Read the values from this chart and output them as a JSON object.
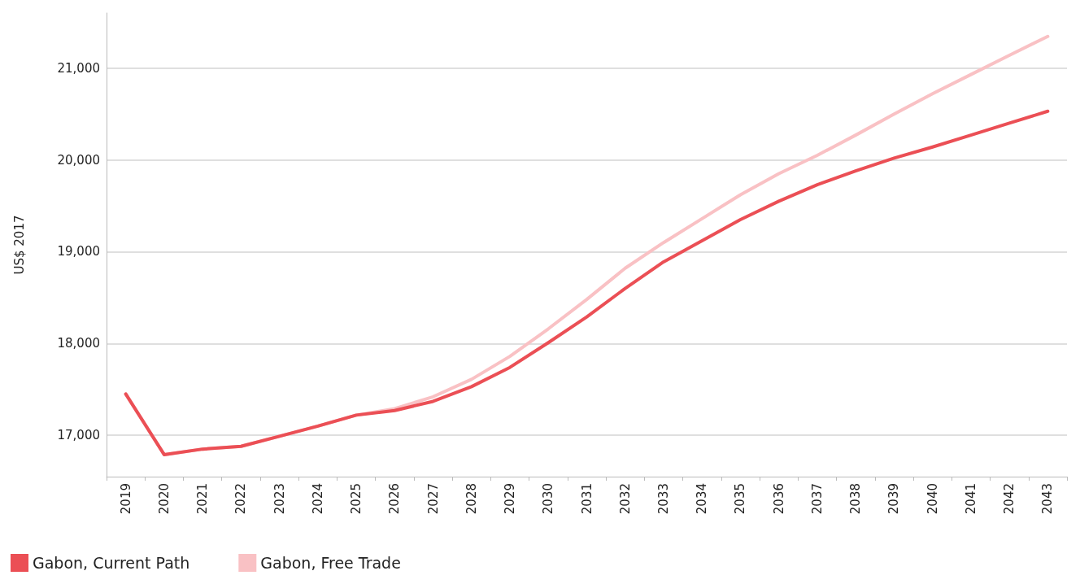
{
  "chart_data": {
    "type": "line",
    "ylabel": "US$ 2017",
    "categories": [
      "2019",
      "2020",
      "2021",
      "2022",
      "2023",
      "2024",
      "2025",
      "2026",
      "2027",
      "2028",
      "2029",
      "2030",
      "2031",
      "2032",
      "2033",
      "2034",
      "2035",
      "2036",
      "2037",
      "2038",
      "2039",
      "2040",
      "2041",
      "2042",
      "2043"
    ],
    "series": [
      {
        "name": "Gabon, Current Path",
        "color": "#eb4f55",
        "values": [
          17450,
          16790,
          16850,
          16880,
          16990,
          17100,
          17220,
          17270,
          17370,
          17530,
          17740,
          18010,
          18290,
          18600,
          18890,
          19120,
          19350,
          19550,
          19730,
          19880,
          20020,
          20140,
          20270,
          20400,
          20530
        ]
      },
      {
        "name": "Gabon, Free Trade",
        "color": "#f9c1c4",
        "values": [
          17450,
          16790,
          16850,
          16880,
          16990,
          17100,
          17220,
          17290,
          17420,
          17610,
          17860,
          18160,
          18480,
          18820,
          19100,
          19360,
          19620,
          19850,
          20050,
          20270,
          20500,
          20720,
          20930,
          21140,
          21345
        ]
      }
    ],
    "ylim": [
      16550,
      21600
    ],
    "yticks": [
      {
        "value": 17000,
        "label": "17,000"
      },
      {
        "value": 18000,
        "label": "18,000"
      },
      {
        "value": 19000,
        "label": "19,000"
      },
      {
        "value": 20000,
        "label": "20,000"
      },
      {
        "value": 21000,
        "label": "21,000"
      }
    ],
    "grid": "y",
    "legend": "bottom left",
    "marker": "none",
    "line_style": "solid"
  }
}
